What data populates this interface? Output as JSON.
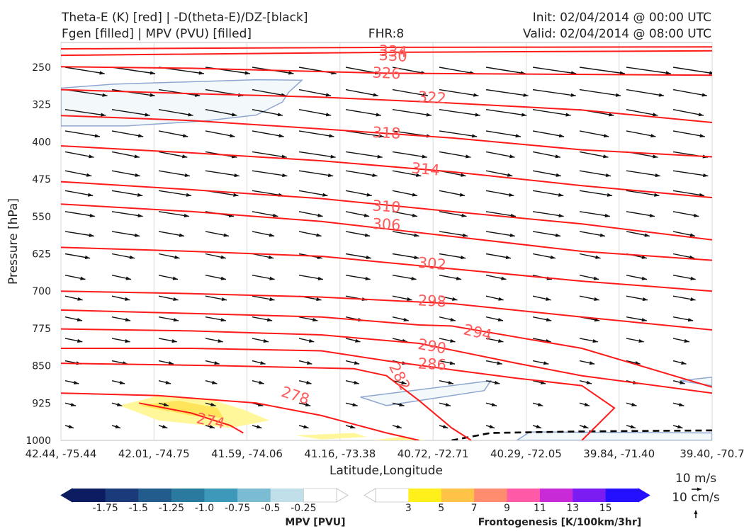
{
  "header": {
    "line1_left": "Theta-E (K) [red] | -D(theta-E)/DZ-[black]",
    "line2_left": "Fgen [filled] | MPV (PVU) [filled]",
    "fhr": "FHR:8",
    "init": "Init: 02/04/2014 @ 00:00 UTC",
    "valid": "Valid: 02/04/2014 @ 08:00 UTC"
  },
  "chart_data": {
    "type": "cross-section",
    "xlabel": "Latitude,Longitude",
    "ylabel": "Pressure [hPa]",
    "x_ticks": [
      "42.44, -75.44",
      "42.01, -74.75",
      "41.59, -74.06",
      "41.16, -73.38",
      "40.72, -72.71",
      "40.29, -72.05",
      "39.84, -71.40",
      "39.40, -70.7"
    ],
    "y_ticks": [
      250,
      325,
      400,
      475,
      550,
      625,
      700,
      775,
      850,
      925,
      1000
    ],
    "ylim": [
      1000,
      200
    ],
    "y_scale": "linear (inverted)",
    "theta_e_contours": [
      {
        "value": 334,
        "label": "334",
        "points": [
          [
            0,
            213
          ],
          [
            0.5,
            210
          ],
          [
            1,
            209
          ]
        ]
      },
      {
        "value": 330,
        "label": "330",
        "points": [
          [
            0,
            226
          ],
          [
            0.5,
            220
          ],
          [
            1,
            217
          ]
        ]
      },
      {
        "value": 326,
        "label": "326",
        "points": [
          [
            0,
            249
          ],
          [
            0.2,
            252
          ],
          [
            0.5,
            262
          ],
          [
            1,
            266
          ]
        ]
      },
      {
        "value": 322,
        "label": "322",
        "points": [
          [
            0,
            295
          ],
          [
            0.2,
            303
          ],
          [
            0.4,
            310
          ],
          [
            0.6,
            322
          ],
          [
            0.8,
            336
          ],
          [
            1,
            361
          ]
        ]
      },
      {
        "value": 318,
        "label": "318",
        "points": [
          [
            0,
            347
          ],
          [
            0.2,
            357
          ],
          [
            0.4,
            374
          ],
          [
            0.6,
            392
          ],
          [
            0.8,
            416
          ],
          [
            1,
            430
          ]
        ]
      },
      {
        "value": 314,
        "label": "314",
        "points": [
          [
            0,
            408
          ],
          [
            0.2,
            422
          ],
          [
            0.4,
            438
          ],
          [
            0.6,
            460
          ],
          [
            0.8,
            488
          ],
          [
            1,
            512
          ]
        ]
      },
      {
        "value": 310,
        "label": "310",
        "points": [
          [
            0,
            480
          ],
          [
            0.2,
            496
          ],
          [
            0.4,
            514
          ],
          [
            0.6,
            540
          ],
          [
            0.8,
            565
          ],
          [
            1,
            597
          ]
        ]
      },
      {
        "value": 306,
        "label": "306",
        "points": [
          [
            0,
            525
          ],
          [
            0.2,
            540
          ],
          [
            0.4,
            560
          ],
          [
            0.6,
            590
          ],
          [
            0.8,
            620
          ],
          [
            1,
            638
          ]
        ]
      },
      {
        "value": 302,
        "label": "302",
        "points": [
          [
            0,
            612
          ],
          [
            0.2,
            620
          ],
          [
            0.4,
            630
          ],
          [
            0.6,
            655
          ],
          [
            0.8,
            680
          ],
          [
            1,
            700
          ]
        ]
      },
      {
        "value": 298,
        "label": "298",
        "points": [
          [
            0,
            700
          ],
          [
            0.2,
            705
          ],
          [
            0.4,
            712
          ],
          [
            0.6,
            725
          ],
          [
            0.8,
            752
          ],
          [
            1,
            778
          ]
        ]
      },
      {
        "value": 294,
        "label": "294",
        "points": [
          [
            0,
            738
          ],
          [
            0.2,
            745
          ],
          [
            0.4,
            752
          ],
          [
            0.55,
            768
          ],
          [
            0.6,
            770
          ],
          [
            0.8,
            815
          ],
          [
            1,
            893
          ]
        ]
      },
      {
        "value": 290,
        "label": "290",
        "points": [
          [
            0,
            776
          ],
          [
            0.2,
            780
          ],
          [
            0.4,
            788
          ],
          [
            0.55,
            805
          ],
          [
            0.7,
            845
          ],
          [
            0.8,
            870
          ],
          [
            1,
            905
          ]
        ]
      },
      {
        "value": 286,
        "label": "286",
        "points": [
          [
            0,
            815
          ],
          [
            0.2,
            815
          ],
          [
            0.4,
            820
          ],
          [
            0.5,
            840
          ],
          [
            0.6,
            858
          ],
          [
            0.7,
            875
          ],
          [
            0.8,
            890
          ],
          [
            0.85,
            935
          ],
          [
            0.8,
            1000
          ]
        ]
      },
      {
        "value": 282,
        "label": "282",
        "points": [
          [
            0,
            845
          ],
          [
            0.25,
            850
          ],
          [
            0.45,
            856
          ],
          [
            0.5,
            870
          ],
          [
            0.55,
            920
          ],
          [
            0.6,
            975
          ],
          [
            0.63,
            1000
          ]
        ]
      },
      {
        "value": 278,
        "label": "278",
        "points": [
          [
            0,
            905
          ],
          [
            0.15,
            910
          ],
          [
            0.3,
            925
          ],
          [
            0.4,
            950
          ],
          [
            0.5,
            985
          ],
          [
            0.55,
            1000
          ]
        ]
      },
      {
        "value": 274,
        "label": "274",
        "points": [
          [
            0.12,
            925
          ],
          [
            0.2,
            945
          ],
          [
            0.26,
            970
          ],
          [
            0.28,
            985
          ]
        ]
      }
    ],
    "dashed_contour": {
      "points": [
        [
          0.6,
          1000
        ],
        [
          0.66,
          985
        ],
        [
          0.8,
          982
        ],
        [
          1,
          980
        ]
      ]
    },
    "mpv_filled_regions": [
      {
        "level": -0.25,
        "points": [
          [
            0,
            292
          ],
          [
            0.08,
            284
          ],
          [
            0.3,
            275
          ],
          [
            0.37,
            276
          ],
          [
            0.35,
            300
          ],
          [
            0.34,
            320
          ],
          [
            0.3,
            346
          ],
          [
            0.22,
            358
          ],
          [
            0.1,
            368
          ],
          [
            0,
            368
          ]
        ]
      },
      {
        "level": -0.25,
        "points": [
          [
            0.46,
            913
          ],
          [
            0.66,
            880
          ],
          [
            0.65,
            900
          ],
          [
            0.5,
            930
          ]
        ]
      },
      {
        "level": -0.25,
        "points": [
          [
            0.7,
            1000
          ],
          [
            0.72,
            983
          ],
          [
            1,
            985
          ],
          [
            1,
            1000
          ]
        ]
      },
      {
        "level": -0.25,
        "points": [
          [
            0.95,
            880
          ],
          [
            1,
            873
          ],
          [
            1,
            890
          ],
          [
            0.98,
            886
          ]
        ]
      }
    ],
    "fgen_filled_regions": [
      {
        "level": 3,
        "points": [
          [
            0.09,
            930
          ],
          [
            0.15,
            910
          ],
          [
            0.23,
            918
          ],
          [
            0.28,
            938
          ],
          [
            0.32,
            960
          ],
          [
            0.26,
            975
          ],
          [
            0.15,
            960
          ]
        ]
      },
      {
        "level": 5,
        "points": [
          [
            0.12,
            930
          ],
          [
            0.18,
            920
          ],
          [
            0.24,
            935
          ],
          [
            0.25,
            955
          ],
          [
            0.2,
            950
          ]
        ]
      },
      {
        "level": 3,
        "points": [
          [
            0.36,
            990
          ],
          [
            0.45,
            985
          ],
          [
            0.47,
            993
          ],
          [
            0.4,
            998
          ]
        ]
      },
      {
        "level": 3,
        "points": [
          [
            0.48,
            1000
          ],
          [
            0.52,
            993
          ],
          [
            0.56,
            1000
          ]
        ]
      }
    ],
    "wind_vectors": {
      "description": "black vectors in x-pressure plane, pointing generally east (right), stronger aloft",
      "scale_labels": [
        "10 m/s",
        "10 cm/s"
      ]
    },
    "mpv_colorbar": {
      "label": "MPV [PVU]",
      "ticks": [
        "-1.75",
        "-1.5",
        "-1.25",
        "-1.0",
        "-0.75",
        "-0.5",
        "-0.25"
      ],
      "colors": [
        "#0c1c60",
        "#1a3a7a",
        "#215c8c",
        "#2a7aa0",
        "#3e98ba",
        "#7cbcd2",
        "#c1dfe8",
        "#ffffff"
      ]
    },
    "fgen_colorbar": {
      "label": "Frontogenesis [K/100km/3hr]",
      "ticks": [
        "3",
        "5",
        "7",
        "9",
        "11",
        "13",
        "15"
      ],
      "colors": [
        "#ffffff",
        "#ffef1a",
        "#ffc347",
        "#ff8c6e",
        "#ff5aa7",
        "#c82ad8",
        "#7a1cf2",
        "#2410ff"
      ]
    },
    "theta_color": "#ff1a1a",
    "label_color": "#ff5a5a"
  }
}
